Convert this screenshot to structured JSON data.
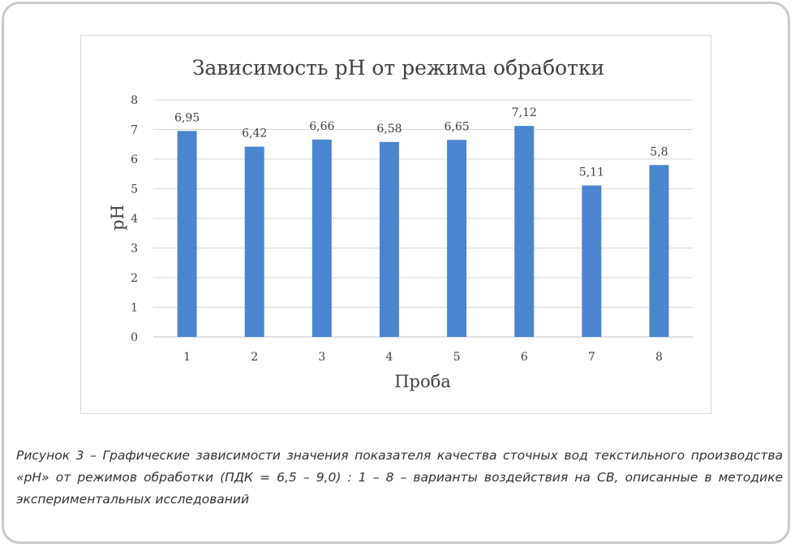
{
  "chart_data": {
    "type": "bar",
    "title": "Зависимость pH от режима обработки",
    "xlabel": "Проба",
    "ylabel": "pH",
    "categories": [
      "1",
      "2",
      "3",
      "4",
      "5",
      "6",
      "7",
      "8"
    ],
    "values": [
      6.95,
      6.42,
      6.66,
      6.58,
      6.65,
      7.12,
      5.11,
      5.8
    ],
    "data_labels": [
      "6,95",
      "6,42",
      "6,66",
      "6,58",
      "6,65",
      "7,12",
      "5,11",
      "5,8"
    ],
    "y_ticks": [
      "0",
      "1",
      "2",
      "3",
      "4",
      "5",
      "6",
      "7",
      "8"
    ],
    "ylim": [
      0,
      8
    ],
    "grid": true,
    "legend": "none",
    "bar_color": "#4a86cf"
  },
  "caption": "Рисунок 3 – Графические зависимости значения показателя качества сточных вод текстильного производства «pH» от режимов обработки (ПДК = 6,5 – 9,0) : 1 – 8 – варианты воздействия на СВ, описанные в методике экспериментальных исследований"
}
